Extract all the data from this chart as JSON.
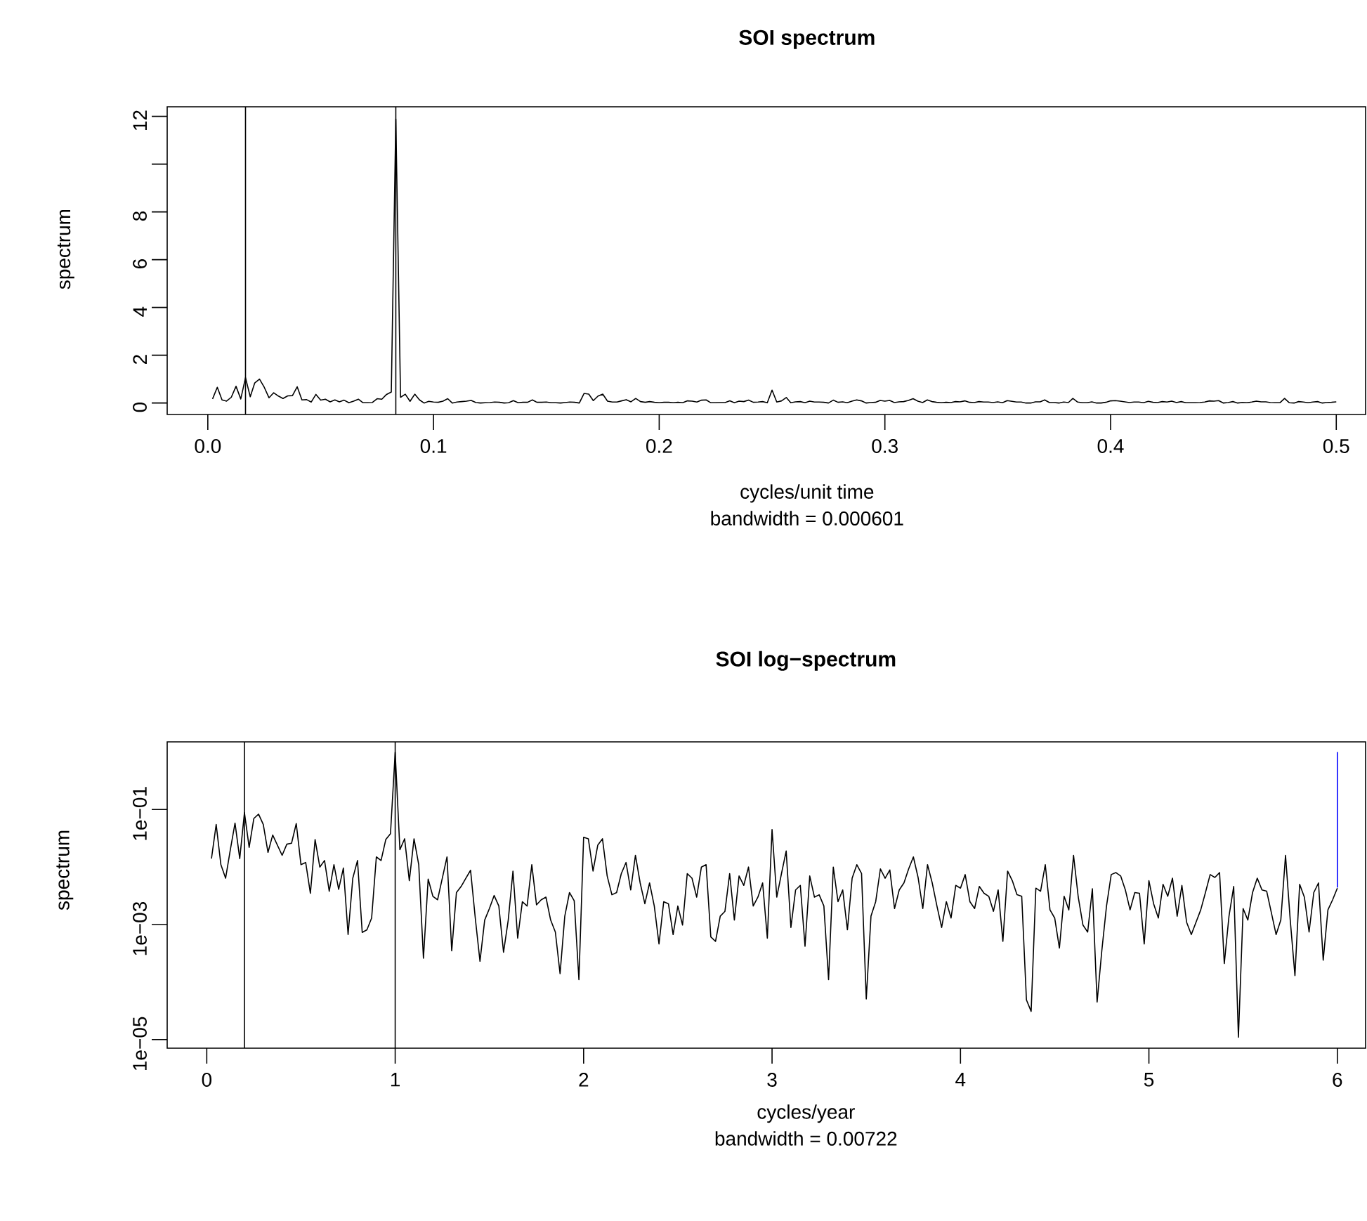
{
  "chart_data": [
    {
      "type": "line",
      "title": "SOI spectrum",
      "xlabel": "cycles/unit time",
      "ylabel": "spectrum",
      "annotations": [
        "bandwidth = 0.000601"
      ],
      "xlim": [
        -0.018,
        0.513
      ],
      "ylim": [
        -0.48,
        12.4
      ],
      "xticks": [
        {
          "value": 0,
          "label": "0.0"
        },
        0.1,
        0.2,
        0.3,
        0.4,
        0.5
      ],
      "yticks": [
        0,
        2,
        4,
        6,
        8,
        {
          "value": 10,
          "label": null
        },
        12
      ],
      "ref_lines": [
        {
          "axis": "x",
          "value": 0.0167,
          "color": "#000000"
        },
        {
          "axis": "x",
          "value": 0.0833,
          "color": "#000000"
        }
      ],
      "series": [
        {
          "color": "#000000",
          "x": [
            0.0021,
            0.0042,
            0.0063,
            0.0083,
            0.0104,
            0.0125,
            0.0146,
            0.0167,
            0.0188,
            0.0208,
            0.0229,
            0.025,
            0.0271,
            0.0292,
            0.0313,
            0.0333,
            0.0354,
            0.0375,
            0.0396,
            0.0417,
            0.0438,
            0.0458,
            0.0479,
            0.05,
            0.0521,
            0.0542,
            0.0563,
            0.0583,
            0.0604,
            0.0625,
            0.0646,
            0.0667,
            0.0688,
            0.0708,
            0.0729,
            0.075,
            0.0771,
            0.0792,
            0.0813,
            0.0833,
            0.0854,
            0.0875,
            0.0896,
            0.0917,
            0.0938,
            0.0958,
            0.0979,
            0.1,
            0.1021,
            0.1042,
            0.1063,
            0.1083,
            0.1104,
            0.1125,
            0.1146,
            0.1167,
            0.1188,
            0.1208,
            0.1229,
            0.125,
            0.1271,
            0.1292,
            0.1313,
            0.1333,
            0.1354,
            0.1375,
            0.1396,
            0.1417,
            0.1438,
            0.1458,
            0.1479,
            0.15,
            0.1521,
            0.1542,
            0.1563,
            0.1583,
            0.1604,
            0.1625,
            0.1646,
            0.1667,
            0.1688,
            0.1708,
            0.1729,
            0.175,
            0.1771,
            0.1792,
            0.1813,
            0.1833,
            0.1854,
            0.1875,
            0.1896,
            0.1917,
            0.1938,
            0.1958,
            0.1979,
            0.2,
            0.2021,
            0.2042,
            0.2063,
            0.2083,
            0.2104,
            0.2125,
            0.2146,
            0.2167,
            0.2188,
            0.2208,
            0.2229,
            0.225,
            0.2271,
            0.2292,
            0.2313,
            0.2333,
            0.2354,
            0.2375,
            0.2396,
            0.2417,
            0.2438,
            0.2458,
            0.2479,
            0.25,
            0.2521,
            0.2542,
            0.2563,
            0.2583,
            0.2604,
            0.2625,
            0.2646,
            0.2667,
            0.2688,
            0.2708,
            0.2729,
            0.275,
            0.2771,
            0.2792,
            0.2813,
            0.2833,
            0.2854,
            0.2875,
            0.2896,
            0.2917,
            0.2938,
            0.2958,
            0.2979,
            0.3,
            0.3021,
            0.3042,
            0.3063,
            0.3083,
            0.3104,
            0.3125,
            0.3146,
            0.3167,
            0.3188,
            0.3208,
            0.3229,
            0.325,
            0.3271,
            0.3292,
            0.3313,
            0.3333,
            0.3354,
            0.3375,
            0.3396,
            0.3417,
            0.3438,
            0.3458,
            0.3479,
            0.35,
            0.3521,
            0.3542,
            0.3563,
            0.3583,
            0.3604,
            0.3625,
            0.3646,
            0.3667,
            0.3688,
            0.3708,
            0.3729,
            0.375,
            0.3771,
            0.3792,
            0.3813,
            0.3833,
            0.3854,
            0.3875,
            0.3896,
            0.3917,
            0.3938,
            0.3958,
            0.3979,
            0.4,
            0.4021,
            0.4042,
            0.4063,
            0.4083,
            0.4104,
            0.4125,
            0.4146,
            0.4167,
            0.4188,
            0.4208,
            0.4229,
            0.425,
            0.4271,
            0.4292,
            0.4313,
            0.4333,
            0.4354,
            0.4375,
            0.4396,
            0.4417,
            0.4438,
            0.4458,
            0.4479,
            0.45,
            0.4521,
            0.4542,
            0.4563,
            0.4583,
            0.4604,
            0.4625,
            0.4646,
            0.4667,
            0.4688,
            0.4708,
            0.4729,
            0.475,
            0.4771,
            0.4792,
            0.4813,
            0.4833,
            0.4854,
            0.4875,
            0.4896,
            0.4917,
            0.4938,
            0.4958,
            0.4979,
            0.5
          ],
          "values": [
            0.17,
            0.66,
            0.13,
            0.08,
            0.24,
            0.7,
            0.17,
            1.06,
            0.26,
            0.84,
            1.0,
            0.66,
            0.22,
            0.43,
            0.29,
            0.19,
            0.3,
            0.31,
            0.68,
            0.13,
            0.14,
            0.04,
            0.36,
            0.12,
            0.16,
            0.05,
            0.13,
            0.05,
            0.12,
            0.01,
            0.08,
            0.16,
            0.01,
            0.01,
            0.02,
            0.18,
            0.16,
            0.36,
            0.46,
            11.88,
            0.24,
            0.37,
            0.07,
            0.37,
            0.13,
            0.0,
            0.07,
            0.04,
            0.03,
            0.08,
            0.18,
            0.0,
            0.04,
            0.06,
            0.08,
            0.11,
            0.02,
            0.0,
            0.01,
            0.02,
            0.04,
            0.03,
            0.0,
            0.01,
            0.1,
            0.01,
            0.03,
            0.03,
            0.13,
            0.03,
            0.03,
            0.04,
            0.01,
            0.01,
            0.0,
            0.02,
            0.04,
            0.03,
            0.0,
            0.4,
            0.37,
            0.1,
            0.29,
            0.37,
            0.08,
            0.04,
            0.04,
            0.09,
            0.14,
            0.05,
            0.19,
            0.06,
            0.03,
            0.06,
            0.03,
            0.01,
            0.03,
            0.03,
            0.01,
            0.03,
            0.01,
            0.09,
            0.08,
            0.04,
            0.12,
            0.13,
            0.01,
            0.01,
            0.02,
            0.02,
            0.09,
            0.01,
            0.08,
            0.06,
            0.12,
            0.03,
            0.04,
            0.06,
            0.01,
            0.54,
            0.04,
            0.09,
            0.23,
            0.01,
            0.05,
            0.06,
            0.01,
            0.08,
            0.04,
            0.04,
            0.03,
            0.0,
            0.12,
            0.03,
            0.05,
            0.01,
            0.08,
            0.13,
            0.09,
            0.0,
            0.02,
            0.03,
            0.11,
            0.08,
            0.11,
            0.02,
            0.05,
            0.06,
            0.11,
            0.18,
            0.08,
            0.02,
            0.13,
            0.06,
            0.03,
            0.01,
            0.03,
            0.02,
            0.06,
            0.05,
            0.09,
            0.03,
            0.02,
            0.06,
            0.04,
            0.04,
            0.02,
            0.05,
            0.01,
            0.1,
            0.07,
            0.04,
            0.04,
            0.0,
            0.0,
            0.05,
            0.05,
            0.13,
            0.02,
            0.02,
            0.0,
            0.04,
            0.02,
            0.19,
            0.04,
            0.01,
            0.01,
            0.05,
            0.0,
            0.0,
            0.03,
            0.09,
            0.1,
            0.08,
            0.05,
            0.02,
            0.04,
            0.04,
            0.01,
            0.07,
            0.03,
            0.02,
            0.06,
            0.04,
            0.08,
            0.02,
            0.06,
            0.01,
            0.01,
            0.01,
            0.02,
            0.04,
            0.09,
            0.08,
            0.1,
            0.0,
            0.02,
            0.06,
            0.0,
            0.02,
            0.01,
            0.04,
            0.08,
            0.05,
            0.05,
            0.02,
            0.01,
            0.01,
            0.19,
            0.01,
            0.0,
            0.06,
            0.04,
            0.01,
            0.04,
            0.06,
            0.0,
            0.02,
            0.03,
            0.05
          ]
        }
      ]
    },
    {
      "type": "line",
      "title": "SOI log−spectrum",
      "xlabel": "cycles/year",
      "ylabel": "spectrum",
      "annotations": [
        "bandwidth = 0.00722"
      ],
      "log": "y",
      "xlim": [
        -0.21,
        6.15
      ],
      "ylim": [
        7.1e-06,
        1.5
      ],
      "xticks": [
        0,
        1,
        2,
        3,
        4,
        5,
        6
      ],
      "yticks": [
        {
          "value": 1e-05,
          "label": "1e−05"
        },
        {
          "value": 0.001,
          "label": "1e−03"
        },
        {
          "value": 0.1,
          "label": "1e−01"
        }
      ],
      "ref_lines": [
        {
          "axis": "x",
          "value": 0.2,
          "color": "#000000"
        },
        {
          "axis": "x",
          "value": 1.0,
          "color": "#000000"
        }
      ],
      "series": [
        {
          "color": "#000000",
          "x": [
            0.025,
            0.05,
            0.075,
            0.1,
            0.125,
            0.15,
            0.175,
            0.2,
            0.225,
            0.25,
            0.275,
            0.3,
            0.325,
            0.35,
            0.375,
            0.4,
            0.425,
            0.45,
            0.475,
            0.5,
            0.525,
            0.55,
            0.575,
            0.6,
            0.625,
            0.65,
            0.675,
            0.7,
            0.725,
            0.75,
            0.775,
            0.8,
            0.825,
            0.85,
            0.875,
            0.9,
            0.925,
            0.95,
            0.975,
            1.0,
            1.025,
            1.05,
            1.075,
            1.1,
            1.125,
            1.15,
            1.175,
            1.2,
            1.225,
            1.25,
            1.275,
            1.3,
            1.325,
            1.35,
            1.375,
            1.4,
            1.425,
            1.45,
            1.475,
            1.5,
            1.525,
            1.55,
            1.575,
            1.6,
            1.625,
            1.65,
            1.675,
            1.7,
            1.725,
            1.75,
            1.775,
            1.8,
            1.825,
            1.85,
            1.875,
            1.9,
            1.925,
            1.95,
            1.975,
            2.0,
            2.025,
            2.05,
            2.075,
            2.1,
            2.125,
            2.15,
            2.175,
            2.2,
            2.225,
            2.25,
            2.275,
            2.3,
            2.325,
            2.35,
            2.375,
            2.4,
            2.425,
            2.45,
            2.475,
            2.5,
            2.525,
            2.55,
            2.575,
            2.6,
            2.625,
            2.65,
            2.675,
            2.7,
            2.725,
            2.75,
            2.775,
            2.8,
            2.825,
            2.85,
            2.875,
            2.9,
            2.925,
            2.95,
            2.975,
            3.0,
            3.025,
            3.05,
            3.075,
            3.1,
            3.125,
            3.15,
            3.175,
            3.2,
            3.225,
            3.25,
            3.275,
            3.3,
            3.325,
            3.35,
            3.375,
            3.4,
            3.425,
            3.45,
            3.475,
            3.5,
            3.525,
            3.55,
            3.575,
            3.6,
            3.625,
            3.65,
            3.675,
            3.7,
            3.725,
            3.75,
            3.775,
            3.8,
            3.825,
            3.85,
            3.875,
            3.9,
            3.925,
            3.95,
            3.975,
            4.0,
            4.025,
            4.05,
            4.075,
            4.1,
            4.125,
            4.15,
            4.175,
            4.2,
            4.225,
            4.25,
            4.275,
            4.3,
            4.325,
            4.35,
            4.375,
            4.4,
            4.425,
            4.45,
            4.475,
            4.5,
            4.525,
            4.55,
            4.575,
            4.6,
            4.625,
            4.65,
            4.675,
            4.7,
            4.725,
            4.75,
            4.775,
            4.8,
            4.825,
            4.85,
            4.875,
            4.9,
            4.925,
            4.95,
            4.975,
            5.0,
            5.025,
            5.05,
            5.075,
            5.1,
            5.125,
            5.15,
            5.175,
            5.2,
            5.225,
            5.25,
            5.275,
            5.3,
            5.325,
            5.35,
            5.375,
            5.4,
            5.425,
            5.45,
            5.475,
            5.5,
            5.525,
            5.55,
            5.575,
            5.6,
            5.625,
            5.65,
            5.675,
            5.7,
            5.725,
            5.75,
            5.775,
            5.8,
            5.825,
            5.85,
            5.875,
            5.9,
            5.925,
            5.95,
            5.975,
            6.0
          ],
          "values": [
            0.014,
            0.055,
            0.011,
            0.0064,
            0.02,
            0.058,
            0.014,
            0.088,
            0.022,
            0.07,
            0.083,
            0.055,
            0.018,
            0.036,
            0.024,
            0.016,
            0.025,
            0.026,
            0.057,
            0.011,
            0.012,
            0.0035,
            0.03,
            0.01,
            0.013,
            0.0038,
            0.011,
            0.0041,
            0.0096,
            0.00067,
            0.0064,
            0.013,
            0.00073,
            0.00081,
            0.0013,
            0.015,
            0.013,
            0.03,
            0.038,
            0.99,
            0.02,
            0.031,
            0.0058,
            0.031,
            0.011,
            0.00026,
            0.0062,
            0.0031,
            0.0027,
            0.0064,
            0.015,
            0.00035,
            0.0036,
            0.0046,
            0.0064,
            0.0088,
            0.0013,
            0.00023,
            0.0012,
            0.0019,
            0.0032,
            0.0021,
            0.00033,
            0.0012,
            0.0085,
            0.00058,
            0.0025,
            0.0021,
            0.011,
            0.0022,
            0.0027,
            0.003,
            0.0012,
            0.00074,
            0.00014,
            0.0014,
            0.0036,
            0.0026,
            0.00011,
            0.033,
            0.031,
            0.0085,
            0.024,
            0.031,
            0.007,
            0.0033,
            0.0036,
            0.0077,
            0.012,
            0.004,
            0.016,
            0.0053,
            0.0023,
            0.0053,
            0.0021,
            0.00046,
            0.0025,
            0.0023,
            0.00067,
            0.0021,
            0.00098,
            0.0077,
            0.0064,
            0.003,
            0.01,
            0.011,
            0.00061,
            0.00051,
            0.0014,
            0.0017,
            0.0077,
            0.0012,
            0.007,
            0.0048,
            0.01,
            0.0021,
            0.003,
            0.0053,
            0.00058,
            0.045,
            0.003,
            0.0077,
            0.019,
            0.00089,
            0.004,
            0.0048,
            0.00042,
            0.007,
            0.003,
            0.0033,
            0.0021,
            0.00011,
            0.01,
            0.0025,
            0.004,
            0.00081,
            0.0064,
            0.011,
            0.0077,
            5.1e-05,
            0.0014,
            0.0025,
            0.0093,
            0.0064,
            0.0089,
            0.0019,
            0.004,
            0.0053,
            0.0093,
            0.015,
            0.0066,
            0.0019,
            0.011,
            0.0053,
            0.0021,
            0.00089,
            0.0025,
            0.0013,
            0.0048,
            0.0043,
            0.0074,
            0.0025,
            0.0019,
            0.0046,
            0.0035,
            0.0031,
            0.0017,
            0.004,
            0.00051,
            0.0085,
            0.0058,
            0.0033,
            0.0031,
            4.9e-05,
            3.1e-05,
            0.0043,
            0.0038,
            0.011,
            0.0018,
            0.0013,
            0.00039,
            0.0031,
            0.0018,
            0.016,
            0.003,
            0.00098,
            0.00074,
            0.0042,
            4.5e-05,
            0.00035,
            0.0021,
            0.0074,
            0.008,
            0.007,
            0.004,
            0.0018,
            0.0036,
            0.0035,
            0.00046,
            0.0058,
            0.0023,
            0.0013,
            0.005,
            0.0031,
            0.0064,
            0.0014,
            0.0048,
            0.0011,
            0.00067,
            0.0011,
            0.0018,
            0.0036,
            0.0074,
            0.0066,
            0.008,
            0.00021,
            0.0014,
            0.0046,
            1.1e-05,
            0.0019,
            0.0012,
            0.0036,
            0.0064,
            0.004,
            0.0038,
            0.0016,
            0.00067,
            0.0012,
            0.016,
            0.0012,
            0.00013,
            0.005,
            0.003,
            0.00074,
            0.0036,
            0.0053,
            0.00024,
            0.0018,
            0.0027,
            0.0043
          ]
        },
        {
          "color": "#0000ff",
          "x": [
            6,
            6
          ],
          "values": [
            0.0044,
            1.0
          ]
        }
      ]
    }
  ]
}
